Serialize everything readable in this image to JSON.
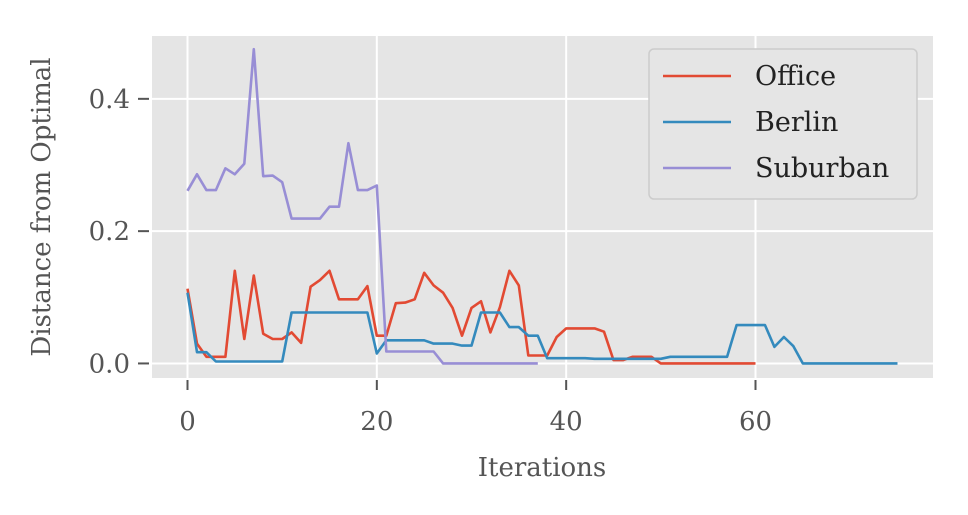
{
  "chart_data": {
    "type": "line",
    "title": "",
    "xlabel": "Iterations",
    "ylabel": "Distance from Optimal",
    "xlim": [
      -3.75,
      78.75
    ],
    "ylim": [
      -0.022,
      0.495
    ],
    "xticks": [
      0,
      20,
      40,
      60
    ],
    "xtick_labels": [
      "0",
      "20",
      "40",
      "60"
    ],
    "yticks": [
      0.0,
      0.2,
      0.4
    ],
    "ytick_labels": [
      "0.0",
      "0.2",
      "0.4"
    ],
    "grid": true,
    "legend_position": "top-right",
    "series": [
      {
        "name": "Office",
        "color": "#E24A33",
        "x": [
          0,
          1,
          2,
          3,
          4,
          5,
          6,
          7,
          8,
          9,
          10,
          11,
          12,
          13,
          14,
          15,
          16,
          17,
          18,
          19,
          20,
          21,
          22,
          23,
          24,
          25,
          26,
          27,
          28,
          29,
          30,
          31,
          32,
          33,
          34,
          35,
          36,
          37,
          38,
          39,
          40,
          41,
          42,
          43,
          44,
          45,
          46,
          47,
          48,
          49,
          50,
          51,
          52,
          53,
          54,
          55,
          56,
          57,
          58,
          59,
          60
        ],
        "values": [
          0.113,
          0.03,
          0.01,
          0.01,
          0.01,
          0.14,
          0.037,
          0.133,
          0.045,
          0.037,
          0.037,
          0.047,
          0.031,
          0.116,
          0.126,
          0.14,
          0.097,
          0.097,
          0.097,
          0.117,
          0.042,
          0.042,
          0.091,
          0.092,
          0.097,
          0.137,
          0.118,
          0.107,
          0.084,
          0.042,
          0.084,
          0.094,
          0.047,
          0.085,
          0.14,
          0.118,
          0.012,
          0.012,
          0.012,
          0.04,
          0.053,
          0.053,
          0.053,
          0.053,
          0.048,
          0.005,
          0.005,
          0.01,
          0.01,
          0.01,
          0.0,
          0.0,
          0.0,
          0.0,
          0.0,
          0.0,
          0.0,
          0.0,
          0.0,
          0.0,
          0.0
        ]
      },
      {
        "name": "Berlin",
        "color": "#348ABD",
        "x": [
          0,
          1,
          2,
          3,
          4,
          5,
          6,
          7,
          8,
          9,
          10,
          11,
          12,
          13,
          14,
          15,
          16,
          17,
          18,
          19,
          20,
          21,
          22,
          23,
          24,
          25,
          26,
          27,
          28,
          29,
          30,
          31,
          32,
          33,
          34,
          35,
          36,
          37,
          38,
          39,
          40,
          41,
          42,
          43,
          44,
          45,
          46,
          47,
          48,
          49,
          50,
          51,
          52,
          53,
          54,
          55,
          56,
          57,
          58,
          59,
          60,
          61,
          62,
          63,
          64,
          65,
          66,
          67,
          68,
          69,
          70,
          71,
          72,
          73,
          74,
          75
        ],
        "values": [
          0.107,
          0.017,
          0.017,
          0.003,
          0.003,
          0.003,
          0.003,
          0.003,
          0.003,
          0.003,
          0.003,
          0.077,
          0.077,
          0.077,
          0.077,
          0.077,
          0.077,
          0.077,
          0.077,
          0.077,
          0.015,
          0.035,
          0.035,
          0.035,
          0.035,
          0.035,
          0.03,
          0.03,
          0.03,
          0.027,
          0.027,
          0.077,
          0.077,
          0.077,
          0.055,
          0.055,
          0.042,
          0.042,
          0.008,
          0.008,
          0.008,
          0.008,
          0.008,
          0.007,
          0.007,
          0.007,
          0.007,
          0.007,
          0.007,
          0.007,
          0.007,
          0.01,
          0.01,
          0.01,
          0.01,
          0.01,
          0.01,
          0.01,
          0.058,
          0.058,
          0.058,
          0.058,
          0.025,
          0.04,
          0.026,
          0.0,
          0.0,
          0.0,
          0.0,
          0.0,
          0.0,
          0.0,
          0.0,
          0.0,
          0.0,
          0.0
        ]
      },
      {
        "name": "Suburban",
        "color": "#988ED5",
        "x": [
          0,
          1,
          2,
          3,
          4,
          5,
          6,
          7,
          8,
          9,
          10,
          11,
          12,
          13,
          14,
          15,
          16,
          17,
          18,
          19,
          20,
          21,
          22,
          23,
          24,
          25,
          26,
          27,
          28,
          29,
          30,
          31,
          32,
          33,
          34,
          35,
          36,
          37
        ],
        "values": [
          0.261,
          0.286,
          0.262,
          0.262,
          0.295,
          0.286,
          0.302,
          0.475,
          0.283,
          0.284,
          0.274,
          0.219,
          0.219,
          0.219,
          0.219,
          0.237,
          0.237,
          0.333,
          0.262,
          0.262,
          0.269,
          0.018,
          0.018,
          0.018,
          0.018,
          0.018,
          0.018,
          0.0,
          0.0,
          0.0,
          0.0,
          0.0,
          0.0,
          0.0,
          0.0,
          0.0,
          0.0,
          0.0
        ]
      }
    ]
  }
}
